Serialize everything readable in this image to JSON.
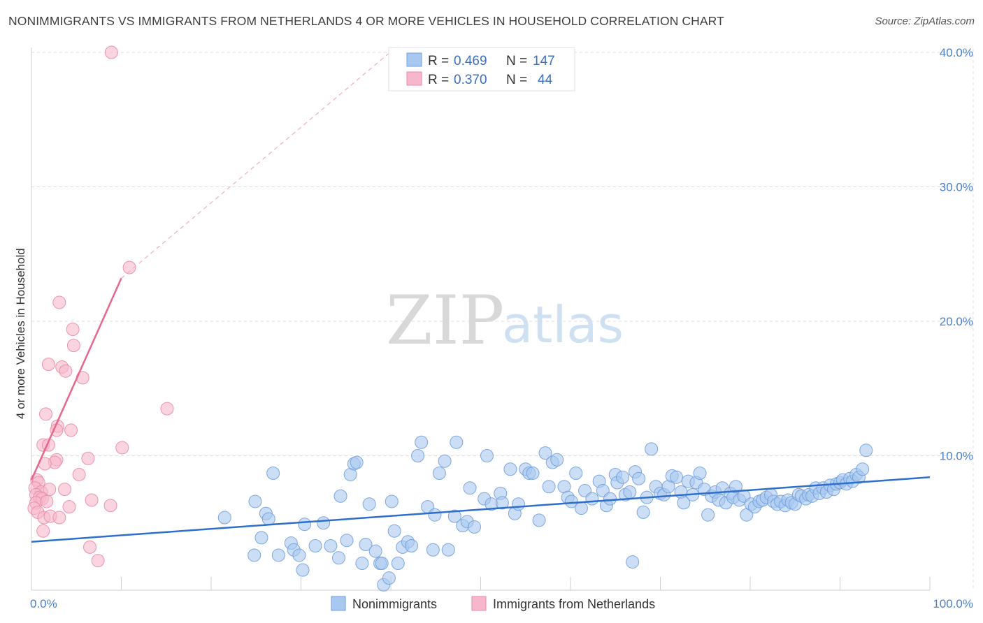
{
  "header": {
    "title": "NONIMMIGRANTS VS IMMIGRANTS FROM NETHERLANDS 4 OR MORE VEHICLES IN HOUSEHOLD CORRELATION CHART",
    "source": "Source: ZipAtlas.com"
  },
  "watermark": {
    "zip": "ZIP",
    "atlas": "atlas"
  },
  "legend": {
    "rows": [
      {
        "r_label": "R =",
        "r_value": "0.469",
        "n_label": "N =",
        "n_value": "147",
        "color": "#a9c8f0"
      },
      {
        "r_label": "R =",
        "r_value": "0.370",
        "n_label": "N =",
        "n_value": "44",
        "color": "#f7b7ca"
      }
    ]
  },
  "bottom_legend": {
    "items": [
      {
        "label": "Nonimmigrants",
        "color": "#a9c8f0"
      },
      {
        "label": "Immigrants from Netherlands",
        "color": "#f7b7ca"
      }
    ]
  },
  "chart_data": {
    "type": "scatter",
    "title": "NONIMMIGRANTS VS IMMIGRANTS FROM NETHERLANDS 4 OR MORE VEHICLES IN HOUSEHOLD CORRELATION CHART",
    "xlabel": "",
    "ylabel": "4 or more Vehicles in Household",
    "xlim": [
      0,
      100
    ],
    "ylim": [
      0,
      40
    ],
    "x_tick_labels": [
      "0.0%",
      "100.0%"
    ],
    "y_ticks": [
      10,
      20,
      30,
      40
    ],
    "y_tick_labels": [
      "10.0%",
      "20.0%",
      "30.0%",
      "40.0%"
    ],
    "grid": true,
    "legend_position": "top-center",
    "series": [
      {
        "name": "Nonimmigrants",
        "color": "#a9c8f0",
        "stroke": "#6f9fdc",
        "trend": {
          "x": [
            0,
            100
          ],
          "y": [
            3.6,
            8.4
          ],
          "color": "#2f6fcc"
        },
        "points": [
          [
            21.5,
            5.4
          ],
          [
            24.8,
            2.6
          ],
          [
            24.9,
            6.6
          ],
          [
            25.6,
            3.9
          ],
          [
            26.1,
            5.7
          ],
          [
            26.4,
            5.3
          ],
          [
            26.9,
            8.7
          ],
          [
            27.5,
            2.6
          ],
          [
            28.9,
            3.5
          ],
          [
            29.2,
            3.0
          ],
          [
            29.8,
            2.6
          ],
          [
            30.2,
            1.5
          ],
          [
            30.4,
            4.9
          ],
          [
            31.6,
            3.3
          ],
          [
            32.5,
            5.0
          ],
          [
            33.3,
            3.3
          ],
          [
            34.2,
            2.4
          ],
          [
            34.4,
            7.0
          ],
          [
            35.1,
            3.7
          ],
          [
            35.5,
            8.6
          ],
          [
            35.9,
            9.4
          ],
          [
            36.8,
            2.0
          ],
          [
            37.2,
            3.4
          ],
          [
            37.6,
            6.4
          ],
          [
            38.3,
            2.9
          ],
          [
            38.8,
            2.0
          ],
          [
            39.0,
            2.0
          ],
          [
            39.2,
            0.4
          ],
          [
            39.8,
            0.9
          ],
          [
            40.4,
            4.4
          ],
          [
            40.8,
            2.0
          ],
          [
            41.3,
            3.2
          ],
          [
            41.9,
            3.6
          ],
          [
            42.3,
            3.3
          ],
          [
            43.0,
            10.0
          ],
          [
            43.4,
            11.0
          ],
          [
            44.1,
            6.2
          ],
          [
            44.7,
            3.0
          ],
          [
            44.9,
            5.6
          ],
          [
            45.4,
            8.7
          ],
          [
            46.0,
            9.6
          ],
          [
            46.4,
            3.0
          ],
          [
            47.1,
            5.5
          ],
          [
            47.3,
            11.0
          ],
          [
            48.0,
            4.8
          ],
          [
            48.5,
            5.1
          ],
          [
            48.8,
            7.6
          ],
          [
            49.3,
            4.7
          ],
          [
            50.4,
            6.8
          ],
          [
            50.7,
            10.0
          ],
          [
            51.2,
            6.4
          ],
          [
            52.2,
            7.2
          ],
          [
            52.4,
            6.5
          ],
          [
            53.3,
            9.0
          ],
          [
            53.8,
            5.7
          ],
          [
            54.2,
            6.4
          ],
          [
            55.0,
            9.0
          ],
          [
            55.4,
            8.7
          ],
          [
            55.8,
            8.7
          ],
          [
            56.5,
            5.2
          ],
          [
            57.2,
            10.2
          ],
          [
            57.6,
            7.7
          ],
          [
            58.0,
            9.5
          ],
          [
            58.5,
            9.7
          ],
          [
            59.3,
            7.7
          ],
          [
            59.7,
            6.9
          ],
          [
            60.1,
            6.6
          ],
          [
            60.6,
            8.7
          ],
          [
            61.2,
            6.1
          ],
          [
            61.6,
            7.4
          ],
          [
            62.4,
            6.8
          ],
          [
            63.2,
            8.1
          ],
          [
            63.6,
            7.4
          ],
          [
            64.0,
            6.3
          ],
          [
            64.4,
            6.8
          ],
          [
            65.0,
            8.6
          ],
          [
            65.2,
            8.0
          ],
          [
            65.8,
            8.4
          ],
          [
            66.1,
            7.1
          ],
          [
            66.6,
            7.3
          ],
          [
            67.2,
            8.8
          ],
          [
            67.6,
            8.3
          ],
          [
            68.1,
            5.8
          ],
          [
            68.5,
            6.9
          ],
          [
            69.0,
            10.5
          ],
          [
            69.5,
            7.7
          ],
          [
            70.0,
            7.2
          ],
          [
            70.4,
            7.1
          ],
          [
            70.9,
            7.7
          ],
          [
            71.3,
            8.5
          ],
          [
            71.8,
            8.4
          ],
          [
            72.3,
            7.3
          ],
          [
            72.6,
            6.5
          ],
          [
            73.1,
            8.1
          ],
          [
            73.6,
            7.1
          ],
          [
            74.0,
            8.0
          ],
          [
            74.4,
            8.7
          ],
          [
            74.9,
            7.5
          ],
          [
            75.3,
            5.6
          ],
          [
            75.7,
            7.0
          ],
          [
            76.1,
            7.3
          ],
          [
            76.5,
            6.7
          ],
          [
            76.9,
            7.6
          ],
          [
            77.3,
            6.5
          ],
          [
            77.8,
            7.2
          ],
          [
            78.1,
            6.9
          ],
          [
            78.4,
            7.7
          ],
          [
            78.8,
            6.7
          ],
          [
            79.3,
            7.0
          ],
          [
            79.6,
            5.6
          ],
          [
            80.1,
            6.4
          ],
          [
            80.5,
            6.2
          ],
          [
            81.0,
            6.6
          ],
          [
            81.4,
            6.7
          ],
          [
            81.8,
            6.9
          ],
          [
            82.3,
            7.1
          ],
          [
            82.6,
            6.6
          ],
          [
            83.0,
            6.4
          ],
          [
            83.4,
            6.6
          ],
          [
            83.9,
            6.3
          ],
          [
            84.2,
            6.7
          ],
          [
            84.6,
            6.5
          ],
          [
            85.0,
            6.4
          ],
          [
            85.4,
            7.1
          ],
          [
            85.7,
            7.0
          ],
          [
            86.2,
            6.8
          ],
          [
            86.5,
            7.1
          ],
          [
            86.9,
            7.0
          ],
          [
            87.3,
            7.6
          ],
          [
            87.7,
            7.2
          ],
          [
            88.1,
            7.6
          ],
          [
            88.5,
            7.3
          ],
          [
            88.9,
            7.8
          ],
          [
            89.3,
            7.5
          ],
          [
            89.6,
            7.9
          ],
          [
            90.0,
            8.0
          ],
          [
            90.3,
            8.2
          ],
          [
            90.7,
            7.9
          ],
          [
            91.1,
            8.3
          ],
          [
            91.4,
            8.1
          ],
          [
            91.8,
            8.6
          ],
          [
            92.1,
            8.4
          ],
          [
            92.5,
            9.0
          ],
          [
            92.9,
            10.4
          ],
          [
            66.9,
            2.1
          ],
          [
            36.2,
            9.5
          ],
          [
            40.1,
            6.6
          ]
        ]
      },
      {
        "name": "Immigrants from Netherlands",
        "color": "#f7b7ca",
        "stroke": "#e98aa8",
        "trend": {
          "x": [
            0,
            10
          ],
          "y": [
            8.2,
            23.2
          ],
          "color": "#e8668c"
        },
        "trend_dashed": {
          "x": [
            10,
            40.8
          ],
          "y": [
            23.2,
            40.5
          ]
        },
        "points": [
          [
            8.9,
            40.0
          ],
          [
            10.9,
            24.0
          ],
          [
            3.1,
            21.4
          ],
          [
            4.6,
            19.4
          ],
          [
            4.7,
            18.2
          ],
          [
            1.9,
            16.8
          ],
          [
            3.4,
            16.6
          ],
          [
            3.8,
            16.3
          ],
          [
            5.7,
            15.8
          ],
          [
            15.1,
            13.5
          ],
          [
            1.6,
            13.1
          ],
          [
            2.9,
            12.2
          ],
          [
            2.8,
            11.9
          ],
          [
            4.4,
            11.9
          ],
          [
            1.3,
            10.8
          ],
          [
            1.9,
            10.8
          ],
          [
            10.1,
            10.6
          ],
          [
            2.8,
            9.7
          ],
          [
            2.6,
            9.5
          ],
          [
            1.5,
            9.4
          ],
          [
            6.3,
            9.8
          ],
          [
            5.3,
            8.6
          ],
          [
            0.6,
            8.2
          ],
          [
            0.8,
            8.0
          ],
          [
            0.4,
            7.6
          ],
          [
            1.1,
            7.3
          ],
          [
            2.0,
            7.5
          ],
          [
            3.7,
            7.5
          ],
          [
            0.5,
            7.1
          ],
          [
            0.9,
            6.9
          ],
          [
            1.2,
            6.8
          ],
          [
            0.5,
            6.5
          ],
          [
            1.7,
            6.6
          ],
          [
            6.7,
            6.7
          ],
          [
            8.8,
            6.3
          ],
          [
            4.2,
            6.2
          ],
          [
            0.3,
            6.1
          ],
          [
            0.7,
            5.8
          ],
          [
            1.4,
            5.4
          ],
          [
            2.1,
            5.5
          ],
          [
            3.1,
            5.4
          ],
          [
            1.3,
            4.4
          ],
          [
            6.5,
            3.2
          ],
          [
            7.4,
            2.2
          ]
        ]
      }
    ]
  }
}
